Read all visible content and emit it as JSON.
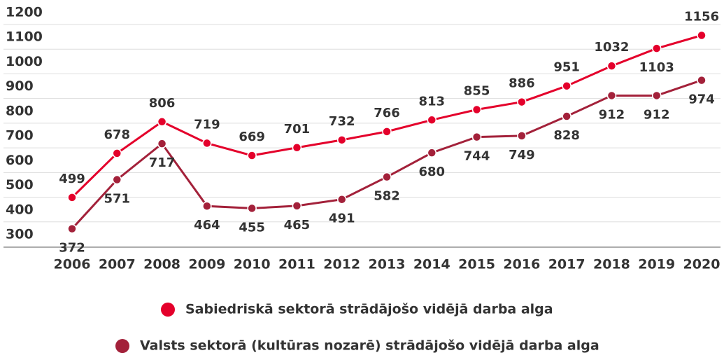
{
  "chart_data": {
    "type": "line",
    "categories": [
      "2006",
      "2007",
      "2008",
      "2009",
      "2010",
      "2011",
      "2012",
      "2013",
      "2014",
      "2015",
      "2016",
      "2017",
      "2018",
      "2019",
      "2020"
    ],
    "series": [
      {
        "name": "Sabiedriskā sektorā strādājošo vidējā darba alga",
        "color": "#e4002b",
        "values": [
          499,
          678,
          806,
          719,
          669,
          701,
          732,
          766,
          813,
          855,
          886,
          951,
          1032,
          1103,
          1156
        ]
      },
      {
        "name": "Valsts sektorā (kultūras nozarē) strādājošo vidējā darba alga",
        "color": "#a3213a",
        "values": [
          372,
          571,
          717,
          464,
          455,
          465,
          491,
          582,
          680,
          744,
          749,
          828,
          912,
          912,
          974
        ]
      }
    ],
    "ylim": [
      300,
      1200
    ],
    "yticks": [
      300,
      400,
      500,
      600,
      700,
      800,
      900,
      1000,
      1100,
      1200
    ],
    "grid": true
  }
}
